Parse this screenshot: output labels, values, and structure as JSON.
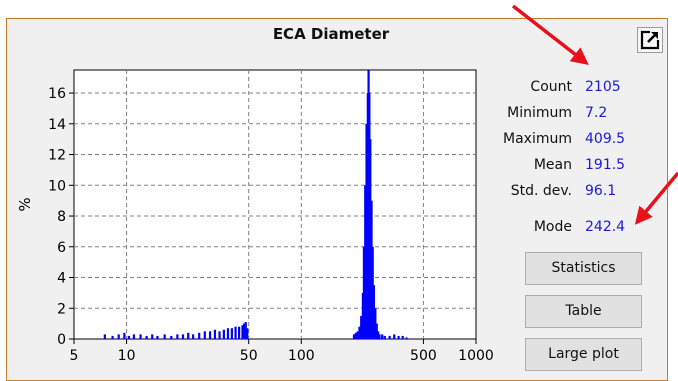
{
  "panel": {
    "title": "ECA Diameter",
    "popout_icon": "popout-icon"
  },
  "stats": [
    {
      "label": "Count",
      "value": "2105"
    },
    {
      "label": "Minimum",
      "value": "7.2"
    },
    {
      "label": "Maximum",
      "value": "409.5"
    },
    {
      "label": "Mean",
      "value": "191.5"
    },
    {
      "label": "Std. dev.",
      "value": "96.1"
    },
    {
      "label": "Mode",
      "value": "242.4"
    }
  ],
  "buttons": {
    "statistics": "Statistics",
    "table": "Table",
    "large_plot": "Large plot"
  },
  "colors": {
    "bars": "#0000ff",
    "stat_value": "#1a1adb",
    "annotation_arrow": "#e8101a",
    "panel_border": "#c67b2c"
  },
  "chart_data": {
    "type": "bar",
    "title": "ECA Diameter",
    "xlabel": "",
    "ylabel": "%",
    "x_scale": "log",
    "xlim": [
      5,
      1000
    ],
    "ylim": [
      0,
      17.5
    ],
    "x_ticks": [
      "5",
      "10",
      "50",
      "100",
      "500",
      "1000"
    ],
    "y_ticks": [
      "0",
      "2",
      "4",
      "6",
      "8",
      "10",
      "12",
      "14",
      "16"
    ],
    "grid": true,
    "series": [
      {
        "x": [
          7.5,
          8.3,
          9.0,
          9.7,
          10.3,
          11,
          12,
          13,
          14,
          15,
          16.5,
          18,
          19.5,
          21,
          22.5,
          24,
          26,
          28,
          30,
          32,
          34,
          36,
          38,
          40,
          42,
          44,
          46,
          47,
          48,
          49,
          200,
          205,
          210,
          215,
          220,
          225,
          228,
          232,
          236,
          240,
          242.4,
          245,
          248,
          252,
          256,
          260,
          265,
          270,
          275,
          280,
          290,
          300,
          320,
          340,
          360,
          380,
          400
        ],
        "y": [
          0.3,
          0.2,
          0.3,
          0.4,
          0.2,
          0.3,
          0.3,
          0.2,
          0.3,
          0.2,
          0.3,
          0.2,
          0.3,
          0.3,
          0.4,
          0.3,
          0.4,
          0.5,
          0.5,
          0.6,
          0.5,
          0.6,
          0.7,
          0.7,
          0.8,
          0.8,
          0.9,
          1.0,
          1.1,
          0.7,
          0.3,
          0.4,
          0.5,
          0.8,
          1.5,
          3.0,
          6.0,
          10.0,
          14.0,
          16.0,
          17.5,
          16.0,
          13.0,
          9.0,
          6.0,
          3.5,
          2.0,
          1.0,
          0.5,
          0.3,
          0.3,
          0.2,
          0.2,
          0.3,
          0.2,
          0.2,
          0.1
        ]
      }
    ]
  }
}
